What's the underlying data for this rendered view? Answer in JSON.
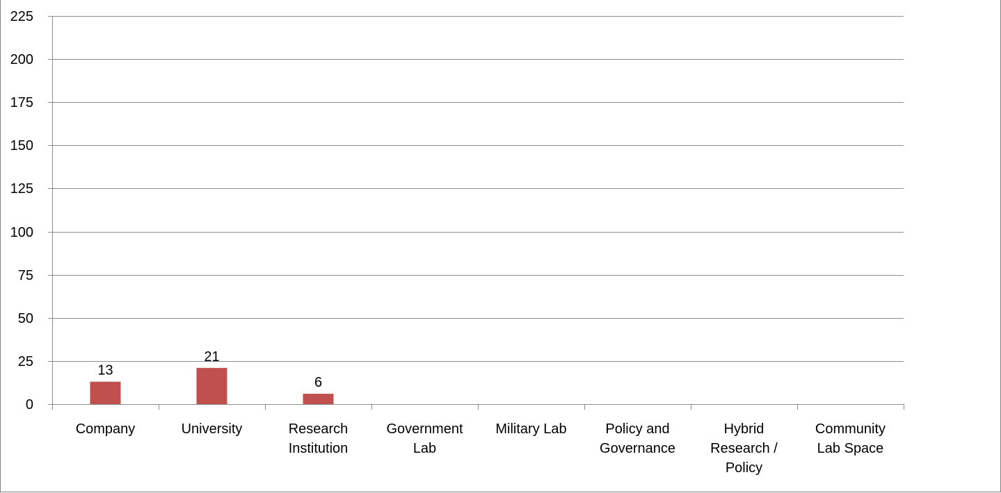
{
  "chart_data": {
    "type": "bar",
    "title": "",
    "xlabel": "",
    "ylabel": "",
    "categories": [
      [
        "Company"
      ],
      [
        "University"
      ],
      [
        "Research",
        "Institution"
      ],
      [
        "Government",
        "Lab"
      ],
      [
        "Military Lab"
      ],
      [
        "Policy and",
        "Governance"
      ],
      [
        "Hybrid",
        "Research /",
        "Policy"
      ],
      [
        "Community",
        "Lab Space"
      ]
    ],
    "values": [
      13,
      21,
      6,
      0,
      0,
      0,
      0,
      0
    ],
    "data_labels": [
      "13",
      "21",
      "6",
      "",
      "",
      "",
      "",
      ""
    ],
    "ylim": [
      0,
      225
    ],
    "yticks": [
      0,
      25,
      50,
      75,
      100,
      125,
      150,
      175,
      200,
      225
    ],
    "grid": true,
    "legend": "none",
    "colors": {
      "bar": "#c0504d",
      "grid": "#8c8c8c",
      "axis": "#8c8c8c",
      "frame": "#7f7f7f"
    }
  }
}
